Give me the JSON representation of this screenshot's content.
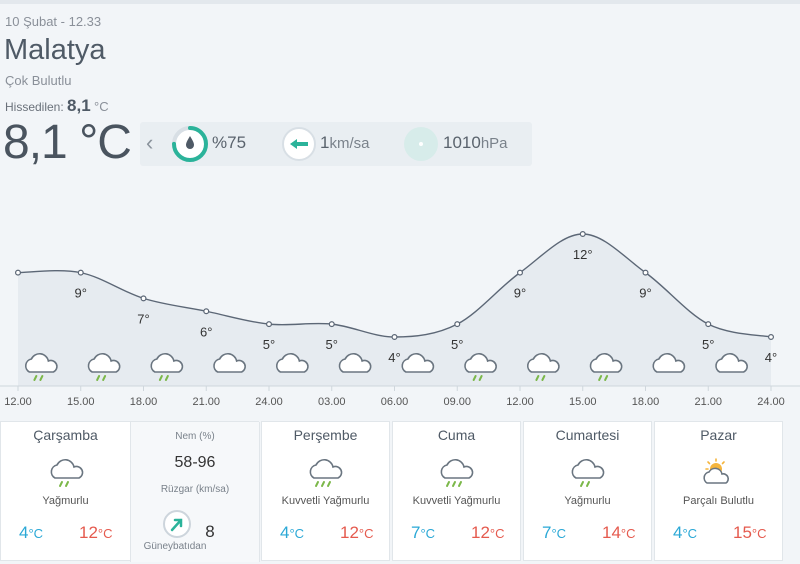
{
  "header": {
    "date": "10 Şubat - 12.33",
    "city": "Malatya",
    "condition": "Çok Bulutlu",
    "feels_label": "Hissedilen:",
    "feels_value": "8,1",
    "feels_unit": "°C",
    "temperature": "8,1 °C"
  },
  "info": {
    "humidity": "%75",
    "humidity_level": 0.75,
    "wind_value": "1",
    "wind_unit": "km/sa",
    "pressure_value": "1010",
    "pressure_unit": "hPa"
  },
  "chart_data": {
    "type": "line",
    "x": [
      "12.00",
      "15.00",
      "18.00",
      "21.00",
      "24.00",
      "03.00",
      "06.00",
      "09.00",
      "12.00",
      "15.00",
      "18.00",
      "21.00",
      "24.00"
    ],
    "values": [
      9,
      9,
      7,
      6,
      5,
      5,
      4,
      5,
      9,
      12,
      9,
      5,
      4
    ],
    "labels": [
      "",
      "9°",
      "7°",
      "6°",
      "5°",
      "5°",
      "4°",
      "5°",
      "9°",
      "12°",
      "9°",
      "5°",
      "4°"
    ],
    "icons": [
      "rain-cloud",
      "rain-cloud",
      "rain-cloud",
      "cloud",
      "cloud",
      "cloud",
      "cloud",
      "rain-cloud",
      "rain-cloud",
      "rain-cloud",
      "cloud",
      "cloud"
    ],
    "line_color": "#5c6776",
    "fill_color": "#e6ebf0"
  },
  "days": [
    {
      "name": "Çarşamba",
      "condition": "Yağmurlu",
      "low": "4",
      "high": "12",
      "unit": "°C",
      "icon": "rain-cloud"
    },
    {
      "name": "Perşembe",
      "condition": "Kuvvetli Yağmurlu",
      "low": "4",
      "high": "12",
      "unit": "°C",
      "icon": "heavy-rain-cloud"
    },
    {
      "name": "Cuma",
      "condition": "Kuvvetli Yağmurlu",
      "low": "7",
      "high": "12",
      "unit": "°C",
      "icon": "heavy-rain-cloud"
    },
    {
      "name": "Cumartesi",
      "condition": "Yağmurlu",
      "low": "7",
      "high": "14",
      "unit": "°C",
      "icon": "rain-cloud"
    },
    {
      "name": "Pazar",
      "condition": "Parçalı Bulutlu",
      "low": "4",
      "high": "15",
      "unit": "°C",
      "icon": "partly-cloudy"
    }
  ],
  "detail": {
    "humidity_label": "Nem (%)",
    "humidity_range": "58-96",
    "wind_label": "Rüzgar (km/sa)",
    "wind_dir": "Güneybatıdan",
    "wind_speed": "8"
  },
  "colors": {
    "low": "#2aa8d6",
    "high": "#e55a4e",
    "accent": "#2bb39a"
  }
}
